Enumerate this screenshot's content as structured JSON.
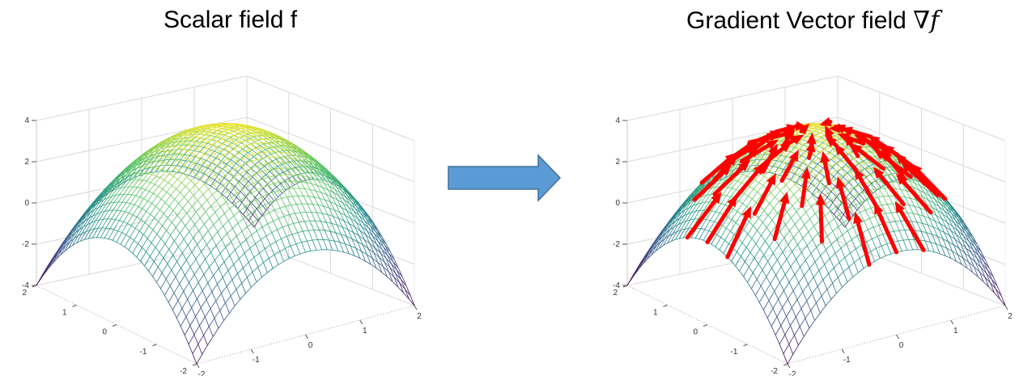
{
  "titles": {
    "left": "Scalar field f",
    "right_text": "Gradient Vector field ",
    "right_math": "∇f"
  },
  "plot": {
    "z_ticks": [
      "4",
      "2",
      "0",
      "-2",
      "-4"
    ],
    "x_ticks": [
      "-2",
      "-1",
      "0",
      "1",
      "2"
    ],
    "y_ticks": [
      "2",
      "1",
      "0",
      "-1",
      "-2"
    ],
    "z_range": [
      -4,
      4
    ],
    "x_range": [
      -2,
      2
    ],
    "y_range": [
      -2,
      2
    ],
    "colormap": [
      "#440154",
      "#3b528b",
      "#21918c",
      "#5ec962",
      "#fde725"
    ]
  },
  "center_arrow": {
    "color": "#5b9bd5"
  },
  "gradient_arrows": {
    "color": "#ff0000"
  }
}
